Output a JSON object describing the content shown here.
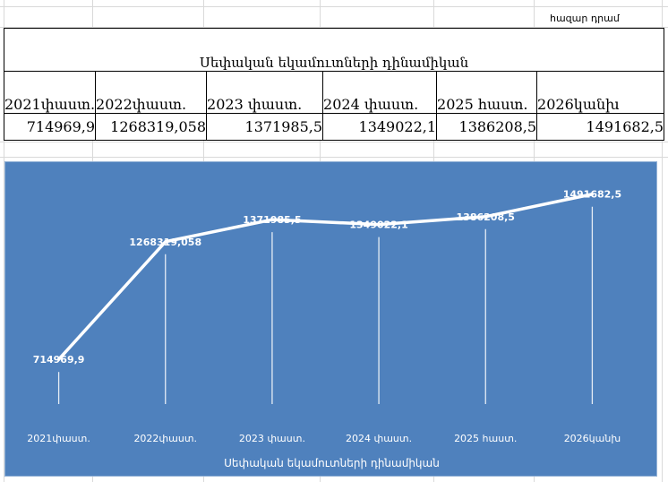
{
  "sheet": {
    "unit_note": "հազար դրամ"
  },
  "table": {
    "title": "Սեփական եկամուտների դինամիկան",
    "headers": [
      "2021փաստ.",
      "2022փաստ.",
      "2023 փաստ.",
      "2024 փաստ.",
      "2025 հաստ.",
      "2026կանխ"
    ],
    "values": [
      "714969,9",
      "1268319,058",
      "1371985,5",
      "1349022,1",
      "1386208,5",
      "1491682,5"
    ]
  },
  "chart_data": {
    "type": "line",
    "title": "",
    "xlabel": "Սեփական եկամուտների դինամիկան",
    "ylabel": "",
    "categories": [
      "2021փաստ.",
      "2022փաստ.",
      "2023  փաստ.",
      "2024  փաստ.",
      "2025  հաստ.",
      "2026կանխ"
    ],
    "values": [
      714969.9,
      1268319.058,
      1371985.5,
      1349022.1,
      1386208.5,
      1491682.5
    ],
    "data_labels": [
      "714969,9",
      "1268319,058",
      "1371985,5",
      "1349022,1",
      "1386208,5",
      "1491682,5"
    ],
    "ylim": [
      400000,
      1600000
    ],
    "drop_lines": true,
    "grid": false,
    "legend": "none",
    "colors": {
      "background": "#4f81bd",
      "line": "#ffffff",
      "text": "#ffffff"
    }
  }
}
